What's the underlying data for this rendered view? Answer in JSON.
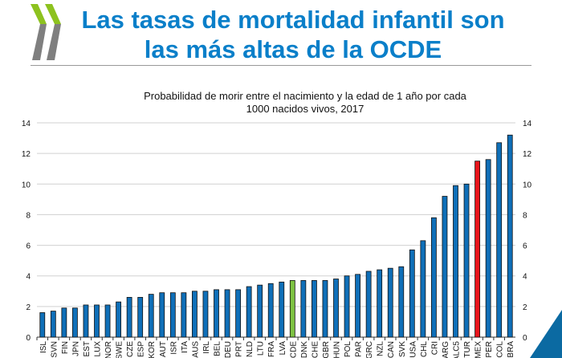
{
  "header": {
    "title_line1": "Las tasas de mortalidad infantil son",
    "title_line2": "las más altas de la OCDE"
  },
  "colors": {
    "title": "#0a7fc9",
    "bar": "#0f6fb8",
    "oecd_bar": "#7dc242",
    "mexico_bar": "#e8141b",
    "logo_green": "#8dc21f",
    "logo_gray": "#7f7f7f",
    "corner": "#0b6aa2"
  },
  "chart_data": {
    "type": "bar",
    "title_line1": "Probabilidad de morir entre el nacimiento y la edad de 1 año por cada",
    "title_line2": "1000 nacidos vivos, 2017",
    "categories": [
      "ISL",
      "SVN",
      "FIN",
      "JPN",
      "EST",
      "LUX",
      "NOR",
      "SWE",
      "CZE",
      "ESP",
      "KOR",
      "AUT",
      "ISR",
      "ITA",
      "AUS",
      "IRL",
      "BEL",
      "DEU",
      "PRT",
      "NLD",
      "LTU",
      "FRA",
      "LVA",
      "OCDE",
      "DNK",
      "CHE",
      "GBR",
      "HUN",
      "POL",
      "PAR",
      "GRC",
      "NZL",
      "CAN",
      "SVK",
      "USA",
      "CHL",
      "CRI",
      "ARG",
      "ALC5",
      "TUR",
      "MEX",
      "PER",
      "COL",
      "BRA"
    ],
    "values": [
      1.6,
      1.7,
      1.9,
      1.9,
      2.1,
      2.1,
      2.1,
      2.3,
      2.6,
      2.6,
      2.8,
      2.9,
      2.9,
      2.9,
      3.0,
      3.0,
      3.1,
      3.1,
      3.1,
      3.3,
      3.4,
      3.5,
      3.6,
      3.7,
      3.7,
      3.7,
      3.7,
      3.8,
      4.0,
      4.1,
      4.3,
      4.4,
      4.5,
      4.6,
      5.7,
      6.3,
      7.8,
      9.2,
      9.9,
      10.0,
      11.5,
      11.6,
      12.7,
      13.2
    ],
    "highlight": {
      "OCDE": "oecd_bar",
      "MEX": "mexico_bar"
    },
    "ylim": [
      0,
      14
    ],
    "yticks": [
      0,
      2,
      4,
      6,
      8,
      10,
      12,
      14
    ],
    "grid": true,
    "secondary_y_axis": true
  }
}
